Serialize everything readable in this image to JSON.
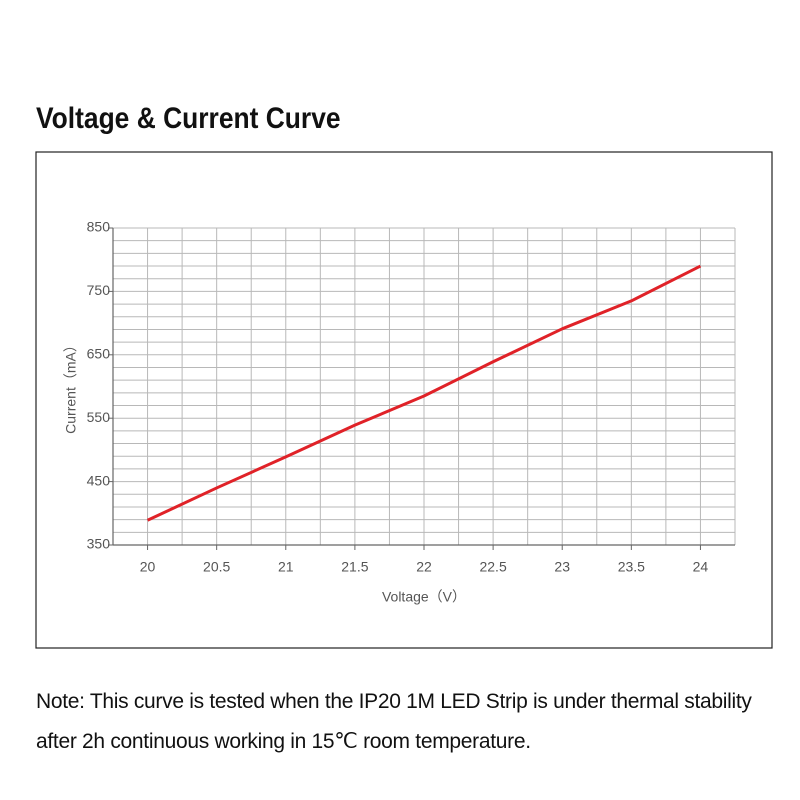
{
  "chart_data": {
    "type": "line",
    "title": "Voltage & Current Curve",
    "x_label": "Voltage（V）",
    "y_label": "Current（mA）",
    "x": [
      20,
      20.5,
      21,
      21.5,
      22,
      22.5,
      23,
      23.5,
      24
    ],
    "series": [
      {
        "name": "Current",
        "color": "#e02228",
        "values": [
          389,
          440,
          489,
          539,
          585,
          639,
          691,
          735,
          790
        ]
      }
    ],
    "xlim": [
      19.75,
      24.25
    ],
    "ylim": [
      350,
      850
    ],
    "xticks": [
      20,
      20.5,
      21,
      21.5,
      22,
      22.5,
      23,
      23.5,
      24
    ],
    "yticks": [
      350,
      450,
      550,
      650,
      750,
      850
    ],
    "xgrid": [
      19.75,
      20,
      20.25,
      20.5,
      20.75,
      21,
      21.25,
      21.5,
      21.75,
      22,
      22.25,
      22.5,
      22.75,
      23,
      23.25,
      23.5,
      23.75,
      24,
      24.25
    ],
    "ygrid": [
      350,
      370,
      390,
      410,
      430,
      450,
      470,
      490,
      510,
      530,
      550,
      570,
      590,
      610,
      630,
      650,
      670,
      690,
      710,
      730,
      750,
      770,
      790,
      810,
      830,
      850
    ],
    "grid": true,
    "note": "Note: This curve is tested when the IP20 1M LED Strip is under thermal stability after 2h continuous working in 15℃ room temperature."
  }
}
